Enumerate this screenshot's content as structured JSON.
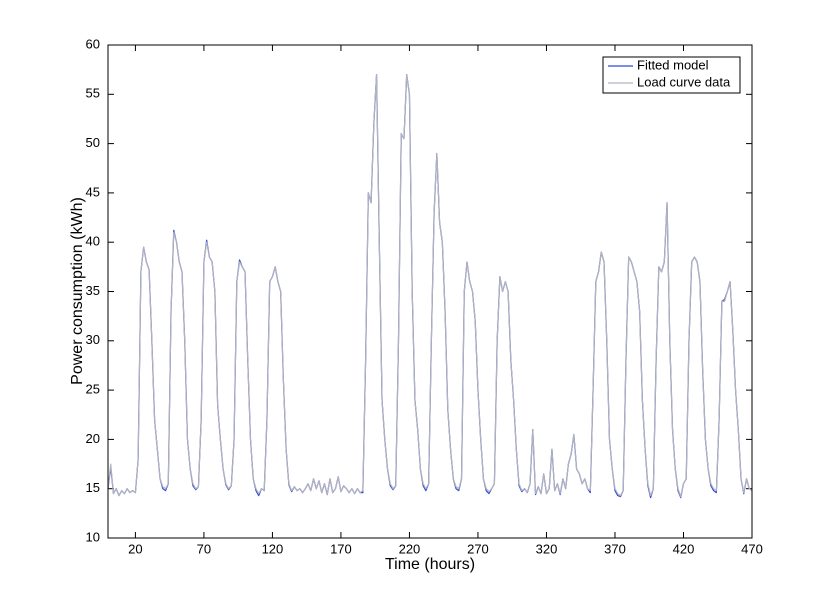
{
  "chart_data": {
    "type": "line",
    "xlabel": "Time (hours)",
    "ylabel": "Power consumption (kWh)",
    "xlim": [
      0,
      470
    ],
    "ylim": [
      10,
      60
    ],
    "xticks": [
      20,
      70,
      120,
      170,
      220,
      270,
      320,
      370,
      420,
      470
    ],
    "yticks": [
      10,
      15,
      20,
      25,
      30,
      35,
      40,
      45,
      50,
      55,
      60
    ],
    "legend": "northeast",
    "grid": false,
    "x": [
      0,
      2,
      4,
      6,
      8,
      10,
      12,
      14,
      16,
      18,
      20,
      22,
      24,
      26,
      28,
      30,
      32,
      34,
      36,
      38,
      40,
      42,
      44,
      46,
      48,
      50,
      52,
      54,
      56,
      58,
      60,
      62,
      64,
      66,
      68,
      70,
      72,
      74,
      76,
      78,
      80,
      82,
      84,
      86,
      88,
      90,
      92,
      94,
      96,
      98,
      100,
      102,
      104,
      106,
      108,
      110,
      112,
      114,
      116,
      118,
      120,
      122,
      124,
      126,
      128,
      130,
      132,
      134,
      136,
      138,
      140,
      142,
      144,
      146,
      148,
      150,
      152,
      154,
      156,
      158,
      160,
      162,
      164,
      166,
      168,
      170,
      172,
      174,
      176,
      178,
      180,
      182,
      184,
      186,
      188,
      190,
      192,
      194,
      196,
      198,
      200,
      202,
      204,
      206,
      208,
      210,
      212,
      214,
      216,
      218,
      220,
      222,
      224,
      226,
      228,
      230,
      232,
      234,
      236,
      238,
      240,
      242,
      244,
      246,
      248,
      250,
      252,
      254,
      256,
      258,
      260,
      262,
      264,
      266,
      268,
      270,
      272,
      274,
      276,
      278,
      280,
      282,
      284,
      286,
      288,
      290,
      292,
      294,
      296,
      298,
      300,
      302,
      304,
      306,
      308,
      310,
      312,
      314,
      316,
      318,
      320,
      322,
      324,
      326,
      328,
      330,
      332,
      334,
      336,
      338,
      340,
      342,
      344,
      346,
      348,
      350,
      352,
      354,
      356,
      358,
      360,
      362,
      364,
      366,
      368,
      370,
      372,
      374,
      376,
      378,
      380,
      382,
      384,
      386,
      388,
      390,
      392,
      394,
      396,
      398,
      400,
      402,
      404,
      406,
      408,
      410,
      412,
      414,
      416,
      418,
      420,
      422,
      424,
      426,
      428,
      430,
      432,
      434,
      436,
      438,
      440,
      442,
      444,
      446,
      448,
      450,
      452,
      454,
      456,
      458,
      460,
      462,
      464,
      466,
      468,
      470
    ],
    "series": [
      {
        "name": "Fitted model",
        "color": "#2f4ad6",
        "values": [
          15,
          17.2,
          14.5,
          15,
          14.3,
          14.8,
          14.5,
          15,
          14.6,
          14.8,
          14.6,
          18,
          37,
          39.5,
          38,
          37.2,
          30,
          22,
          19,
          16,
          15,
          14.8,
          15.5,
          33,
          41.2,
          40,
          38,
          37,
          30,
          20,
          17,
          15.3,
          14.9,
          15.2,
          22,
          38,
          40.2,
          38.5,
          38,
          35,
          23.5,
          20,
          17,
          15.4,
          14.9,
          15.3,
          20,
          36,
          38.2,
          37.5,
          37,
          28,
          20,
          16,
          14.8,
          14.3,
          15,
          14.8,
          22,
          36,
          36.5,
          37.5,
          36,
          35,
          26,
          19,
          15.4,
          14.7,
          15.2,
          14.8,
          15,
          14.6,
          15,
          15.5,
          14.8,
          16,
          15,
          15.8,
          14.6,
          15.5,
          14.4,
          16,
          14.6,
          15,
          16.2,
          14.7,
          15.3,
          15,
          14.6,
          15,
          14.5,
          15,
          14.6,
          14.6,
          28,
          45,
          44,
          52,
          57,
          40,
          24,
          20,
          17,
          15.3,
          14.9,
          15.3,
          30,
          51,
          50.5,
          57,
          55,
          35,
          24,
          21,
          17,
          15.3,
          14.8,
          15.5,
          30,
          43,
          49,
          42,
          40,
          33,
          23,
          19,
          16,
          15,
          14.8,
          16,
          35,
          38,
          36,
          35,
          32,
          25,
          20,
          16,
          14.8,
          14.5,
          15,
          15.5,
          30,
          36.5,
          35,
          36,
          35,
          28,
          24,
          19,
          15.3,
          14.7,
          15,
          14.6,
          15.5,
          21,
          14.4,
          15.2,
          14.5,
          16.5,
          14.5,
          15,
          19,
          14.8,
          15.5,
          14.4,
          16,
          15,
          17.5,
          18.5,
          20.5,
          17,
          16.5,
          15.5,
          16,
          15,
          14.6,
          25,
          36,
          37,
          39,
          38,
          30,
          20,
          17,
          14.8,
          14.3,
          14.2,
          14.8,
          28,
          38.5,
          38,
          37,
          36,
          33,
          24,
          19,
          15.3,
          14.1,
          15,
          28,
          37.5,
          37,
          38,
          44,
          30,
          21,
          17,
          14.8,
          14.1,
          15.5,
          16,
          30,
          38,
          38.5,
          38,
          36,
          27,
          20,
          17,
          15.3,
          14.8,
          14.6,
          22,
          34,
          34.2,
          35,
          36,
          31,
          25,
          21,
          16,
          14.5,
          16,
          15,
          14.8
        ]
      },
      {
        "name": "Load curve data",
        "color": "#b3b3bd",
        "values": [
          15,
          17.5,
          14.5,
          15,
          14.3,
          14.8,
          14.5,
          15,
          14.6,
          14.8,
          14.6,
          18,
          37,
          39.5,
          38,
          37.2,
          30,
          22,
          19,
          16,
          15.2,
          15,
          15.5,
          33,
          41,
          40,
          38,
          37,
          30,
          20,
          17,
          15.5,
          15,
          15.2,
          22,
          38,
          40,
          38.5,
          38,
          35,
          23.5,
          20,
          17,
          15.5,
          15,
          15.3,
          20,
          36,
          38,
          37.5,
          37,
          28,
          20,
          16,
          15,
          14.5,
          15,
          14.8,
          22,
          36,
          36.5,
          37.5,
          36,
          35,
          26,
          19,
          15.5,
          14.8,
          15.2,
          14.8,
          15,
          14.6,
          15,
          15.5,
          14.8,
          16,
          15,
          15.8,
          14.6,
          15.5,
          14.4,
          16,
          14.6,
          15,
          16.2,
          14.7,
          15.3,
          15,
          14.6,
          15,
          14.5,
          15,
          14.6,
          14.8,
          28,
          45,
          44,
          52,
          57,
          40,
          24,
          20,
          17,
          15.5,
          15,
          15.3,
          30,
          51,
          50.5,
          57,
          55,
          35,
          24,
          21,
          17,
          15.5,
          15,
          15.5,
          30,
          43,
          49,
          42,
          40,
          33,
          23,
          19,
          16,
          15.2,
          15,
          16,
          35,
          38,
          36,
          35,
          32,
          25,
          20,
          16,
          15,
          14.7,
          15,
          15.5,
          30,
          36.5,
          35,
          36,
          35,
          28,
          24,
          19,
          15.5,
          14.8,
          15,
          14.6,
          15.5,
          21,
          14.5,
          15.2,
          14.5,
          16.5,
          14.5,
          15,
          19,
          14.8,
          15.5,
          14.5,
          16,
          15,
          17.5,
          18.5,
          20.5,
          17,
          16.5,
          15.5,
          16,
          15,
          14.8,
          25,
          36,
          37,
          39,
          38,
          30,
          20,
          17,
          15,
          14.5,
          14.3,
          14.8,
          28,
          38.5,
          38,
          37,
          36,
          33,
          24,
          19,
          15.5,
          14.3,
          15,
          28,
          37.5,
          37,
          38,
          44,
          30,
          21,
          17,
          15,
          14.2,
          15.5,
          16,
          30,
          38,
          38.5,
          38,
          36,
          27,
          20,
          17,
          15.5,
          15,
          14.8,
          22,
          34,
          34,
          35,
          36,
          31,
          25,
          21,
          16,
          14.6,
          16,
          15,
          14.8
        ]
      }
    ]
  }
}
